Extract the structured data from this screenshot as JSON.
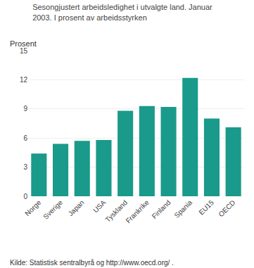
{
  "chart_data": {
    "type": "bar",
    "title": "Sesongjustert arbeidsledighet i utvalgte land. Januar\n2003. I prosent av arbeidsstyrken",
    "ylabel": "Prosent",
    "annotations": [
      "Kilde: Statistisk sentralbyrå og http://www.oecd.org/ ."
    ],
    "categories": [
      "Norge",
      "Sverige",
      "Japan",
      "USA",
      "Tyskland",
      "Frankrike",
      "Finland",
      "Spania",
      "EU15",
      "OECD"
    ],
    "values": [
      4.4,
      5.4,
      5.7,
      5.8,
      8.8,
      9.3,
      9.2,
      12.2,
      8.0,
      7.1
    ],
    "color": "#1a9a8a",
    "ylim": [
      0,
      15
    ],
    "yticks": [
      0,
      3,
      6,
      9,
      12,
      15
    ],
    "grid": true
  }
}
